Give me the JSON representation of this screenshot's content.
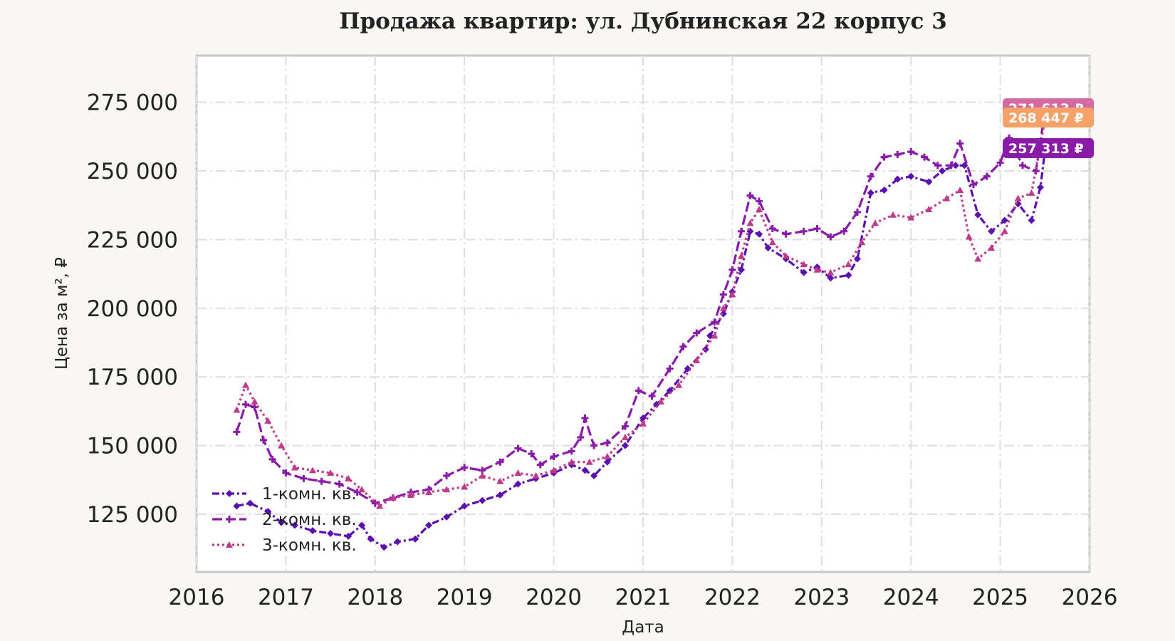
{
  "chart_data": {
    "type": "line",
    "title": "Продажа квартир: ул. Дубнинская 22 корпус 3",
    "xlabel": "Дата",
    "ylabel": "Цена за м², ₽",
    "xlim": [
      2016,
      2026
    ],
    "ylim": [
      104000,
      292000
    ],
    "x_ticks": [
      "2016",
      "2017",
      "2018",
      "2019",
      "2020",
      "2021",
      "2022",
      "2023",
      "2024",
      "2025",
      "2026"
    ],
    "y_ticks": [
      125000,
      150000,
      175000,
      200000,
      225000,
      250000,
      275000
    ],
    "y_tick_labels": [
      "125 000",
      "150 000",
      "175 000",
      "200 000",
      "225 000",
      "250 000",
      "275 000"
    ],
    "grid": true,
    "legend_position": "lower-left",
    "series": [
      {
        "name": "1-комн. кв.",
        "color": "#5b0fb0",
        "marker": "diamond",
        "dash": "dashdot",
        "points": [
          [
            2016.45,
            128000
          ],
          [
            2016.6,
            129000
          ],
          [
            2016.8,
            126000
          ],
          [
            2016.95,
            122000
          ],
          [
            2017.1,
            121000
          ],
          [
            2017.3,
            119000
          ],
          [
            2017.5,
            118000
          ],
          [
            2017.7,
            117000
          ],
          [
            2017.85,
            121000
          ],
          [
            2017.95,
            116000
          ],
          [
            2018.1,
            113000
          ],
          [
            2018.25,
            115000
          ],
          [
            2018.45,
            116000
          ],
          [
            2018.6,
            121000
          ],
          [
            2018.8,
            124000
          ],
          [
            2019.0,
            128000
          ],
          [
            2019.2,
            130000
          ],
          [
            2019.4,
            132000
          ],
          [
            2019.6,
            136000
          ],
          [
            2019.8,
            138000
          ],
          [
            2020.0,
            140000
          ],
          [
            2020.2,
            143000
          ],
          [
            2020.35,
            141000
          ],
          [
            2020.45,
            139000
          ],
          [
            2020.6,
            144000
          ],
          [
            2020.8,
            150000
          ],
          [
            2021.0,
            160000
          ],
          [
            2021.15,
            165000
          ],
          [
            2021.3,
            170000
          ],
          [
            2021.5,
            178000
          ],
          [
            2021.7,
            185000
          ],
          [
            2021.75,
            190000
          ],
          [
            2021.9,
            198000
          ],
          [
            2022.0,
            206000
          ],
          [
            2022.1,
            214000
          ],
          [
            2022.2,
            228000
          ],
          [
            2022.3,
            227000
          ],
          [
            2022.4,
            222000
          ],
          [
            2022.6,
            218000
          ],
          [
            2022.8,
            213000
          ],
          [
            2022.95,
            215000
          ],
          [
            2023.1,
            211000
          ],
          [
            2023.3,
            212000
          ],
          [
            2023.4,
            218000
          ],
          [
            2023.55,
            242000
          ],
          [
            2023.7,
            243000
          ],
          [
            2023.85,
            247000
          ],
          [
            2024.0,
            248000
          ],
          [
            2024.2,
            246000
          ],
          [
            2024.35,
            250000
          ],
          [
            2024.5,
            252000
          ],
          [
            2024.6,
            252000
          ],
          [
            2024.75,
            234000
          ],
          [
            2024.9,
            228000
          ],
          [
            2025.05,
            232000
          ],
          [
            2025.2,
            238000
          ],
          [
            2025.35,
            232000
          ],
          [
            2025.45,
            244000
          ],
          [
            2025.5,
            257313
          ]
        ]
      },
      {
        "name": "2-комн. кв.",
        "color": "#8a1aa8",
        "marker": "plus",
        "dash": "longdash",
        "points": [
          [
            2016.45,
            155000
          ],
          [
            2016.55,
            165000
          ],
          [
            2016.65,
            164000
          ],
          [
            2016.75,
            152000
          ],
          [
            2016.85,
            145000
          ],
          [
            2017.0,
            140000
          ],
          [
            2017.2,
            138000
          ],
          [
            2017.4,
            137000
          ],
          [
            2017.6,
            136000
          ],
          [
            2017.8,
            133000
          ],
          [
            2018.0,
            129000
          ],
          [
            2018.2,
            131000
          ],
          [
            2018.4,
            133000
          ],
          [
            2018.6,
            134000
          ],
          [
            2018.8,
            139000
          ],
          [
            2019.0,
            142000
          ],
          [
            2019.2,
            141000
          ],
          [
            2019.4,
            144000
          ],
          [
            2019.6,
            149000
          ],
          [
            2019.75,
            147000
          ],
          [
            2019.85,
            143000
          ],
          [
            2020.0,
            146000
          ],
          [
            2020.2,
            148000
          ],
          [
            2020.3,
            153000
          ],
          [
            2020.35,
            160000
          ],
          [
            2020.45,
            150000
          ],
          [
            2020.6,
            151000
          ],
          [
            2020.8,
            157000
          ],
          [
            2020.95,
            170000
          ],
          [
            2021.1,
            168000
          ],
          [
            2021.3,
            178000
          ],
          [
            2021.45,
            186000
          ],
          [
            2021.6,
            191000
          ],
          [
            2021.8,
            195000
          ],
          [
            2021.9,
            205000
          ],
          [
            2022.0,
            214000
          ],
          [
            2022.1,
            228000
          ],
          [
            2022.2,
            241000
          ],
          [
            2022.3,
            239000
          ],
          [
            2022.45,
            229000
          ],
          [
            2022.6,
            227000
          ],
          [
            2022.8,
            228000
          ],
          [
            2022.95,
            229000
          ],
          [
            2023.1,
            226000
          ],
          [
            2023.25,
            228000
          ],
          [
            2023.4,
            235000
          ],
          [
            2023.55,
            248000
          ],
          [
            2023.7,
            255000
          ],
          [
            2023.85,
            256000
          ],
          [
            2024.0,
            257000
          ],
          [
            2024.15,
            255000
          ],
          [
            2024.3,
            252000
          ],
          [
            2024.45,
            252000
          ],
          [
            2024.55,
            260000
          ],
          [
            2024.7,
            245000
          ],
          [
            2024.85,
            248000
          ],
          [
            2025.0,
            253000
          ],
          [
            2025.1,
            262000
          ],
          [
            2025.25,
            252000
          ],
          [
            2025.4,
            250000
          ],
          [
            2025.5,
            271613
          ]
        ]
      },
      {
        "name": "3-комн. кв.",
        "color": "#bf3a8a",
        "marker": "triangle",
        "dash": "dotted",
        "points": [
          [
            2016.45,
            163000
          ],
          [
            2016.55,
            172000
          ],
          [
            2016.65,
            166000
          ],
          [
            2016.8,
            159000
          ],
          [
            2016.95,
            150000
          ],
          [
            2017.1,
            142000
          ],
          [
            2017.3,
            141000
          ],
          [
            2017.5,
            140000
          ],
          [
            2017.7,
            138000
          ],
          [
            2017.85,
            134000
          ],
          [
            2018.05,
            128000
          ],
          [
            2018.2,
            131000
          ],
          [
            2018.4,
            132000
          ],
          [
            2018.6,
            133000
          ],
          [
            2018.8,
            134000
          ],
          [
            2019.0,
            135000
          ],
          [
            2019.2,
            139000
          ],
          [
            2019.4,
            137000
          ],
          [
            2019.6,
            140000
          ],
          [
            2019.8,
            139000
          ],
          [
            2020.0,
            141000
          ],
          [
            2020.2,
            144000
          ],
          [
            2020.4,
            144000
          ],
          [
            2020.6,
            146000
          ],
          [
            2020.8,
            153000
          ],
          [
            2021.0,
            158000
          ],
          [
            2021.2,
            166000
          ],
          [
            2021.4,
            172000
          ],
          [
            2021.6,
            181000
          ],
          [
            2021.8,
            190000
          ],
          [
            2021.9,
            200000
          ],
          [
            2022.0,
            205000
          ],
          [
            2022.1,
            219000
          ],
          [
            2022.2,
            231000
          ],
          [
            2022.3,
            236000
          ],
          [
            2022.45,
            224000
          ],
          [
            2022.6,
            219000
          ],
          [
            2022.8,
            216000
          ],
          [
            2022.95,
            214000
          ],
          [
            2023.1,
            213000
          ],
          [
            2023.3,
            216000
          ],
          [
            2023.45,
            224000
          ],
          [
            2023.6,
            231000
          ],
          [
            2023.8,
            234000
          ],
          [
            2024.0,
            233000
          ],
          [
            2024.2,
            236000
          ],
          [
            2024.4,
            240000
          ],
          [
            2024.55,
            243000
          ],
          [
            2024.65,
            226000
          ],
          [
            2024.75,
            218000
          ],
          [
            2024.9,
            222000
          ],
          [
            2025.05,
            228000
          ],
          [
            2025.2,
            240000
          ],
          [
            2025.35,
            242000
          ],
          [
            2025.5,
            268447
          ]
        ]
      }
    ],
    "end_labels": [
      {
        "text": "271 613 ₽",
        "value": 271613,
        "color": "#d46aa0"
      },
      {
        "text": "268 447 ₽",
        "value": 268447,
        "color": "#f5a167"
      },
      {
        "text": "257 313 ₽",
        "value": 257313,
        "color": "#8a1aa8"
      }
    ]
  }
}
